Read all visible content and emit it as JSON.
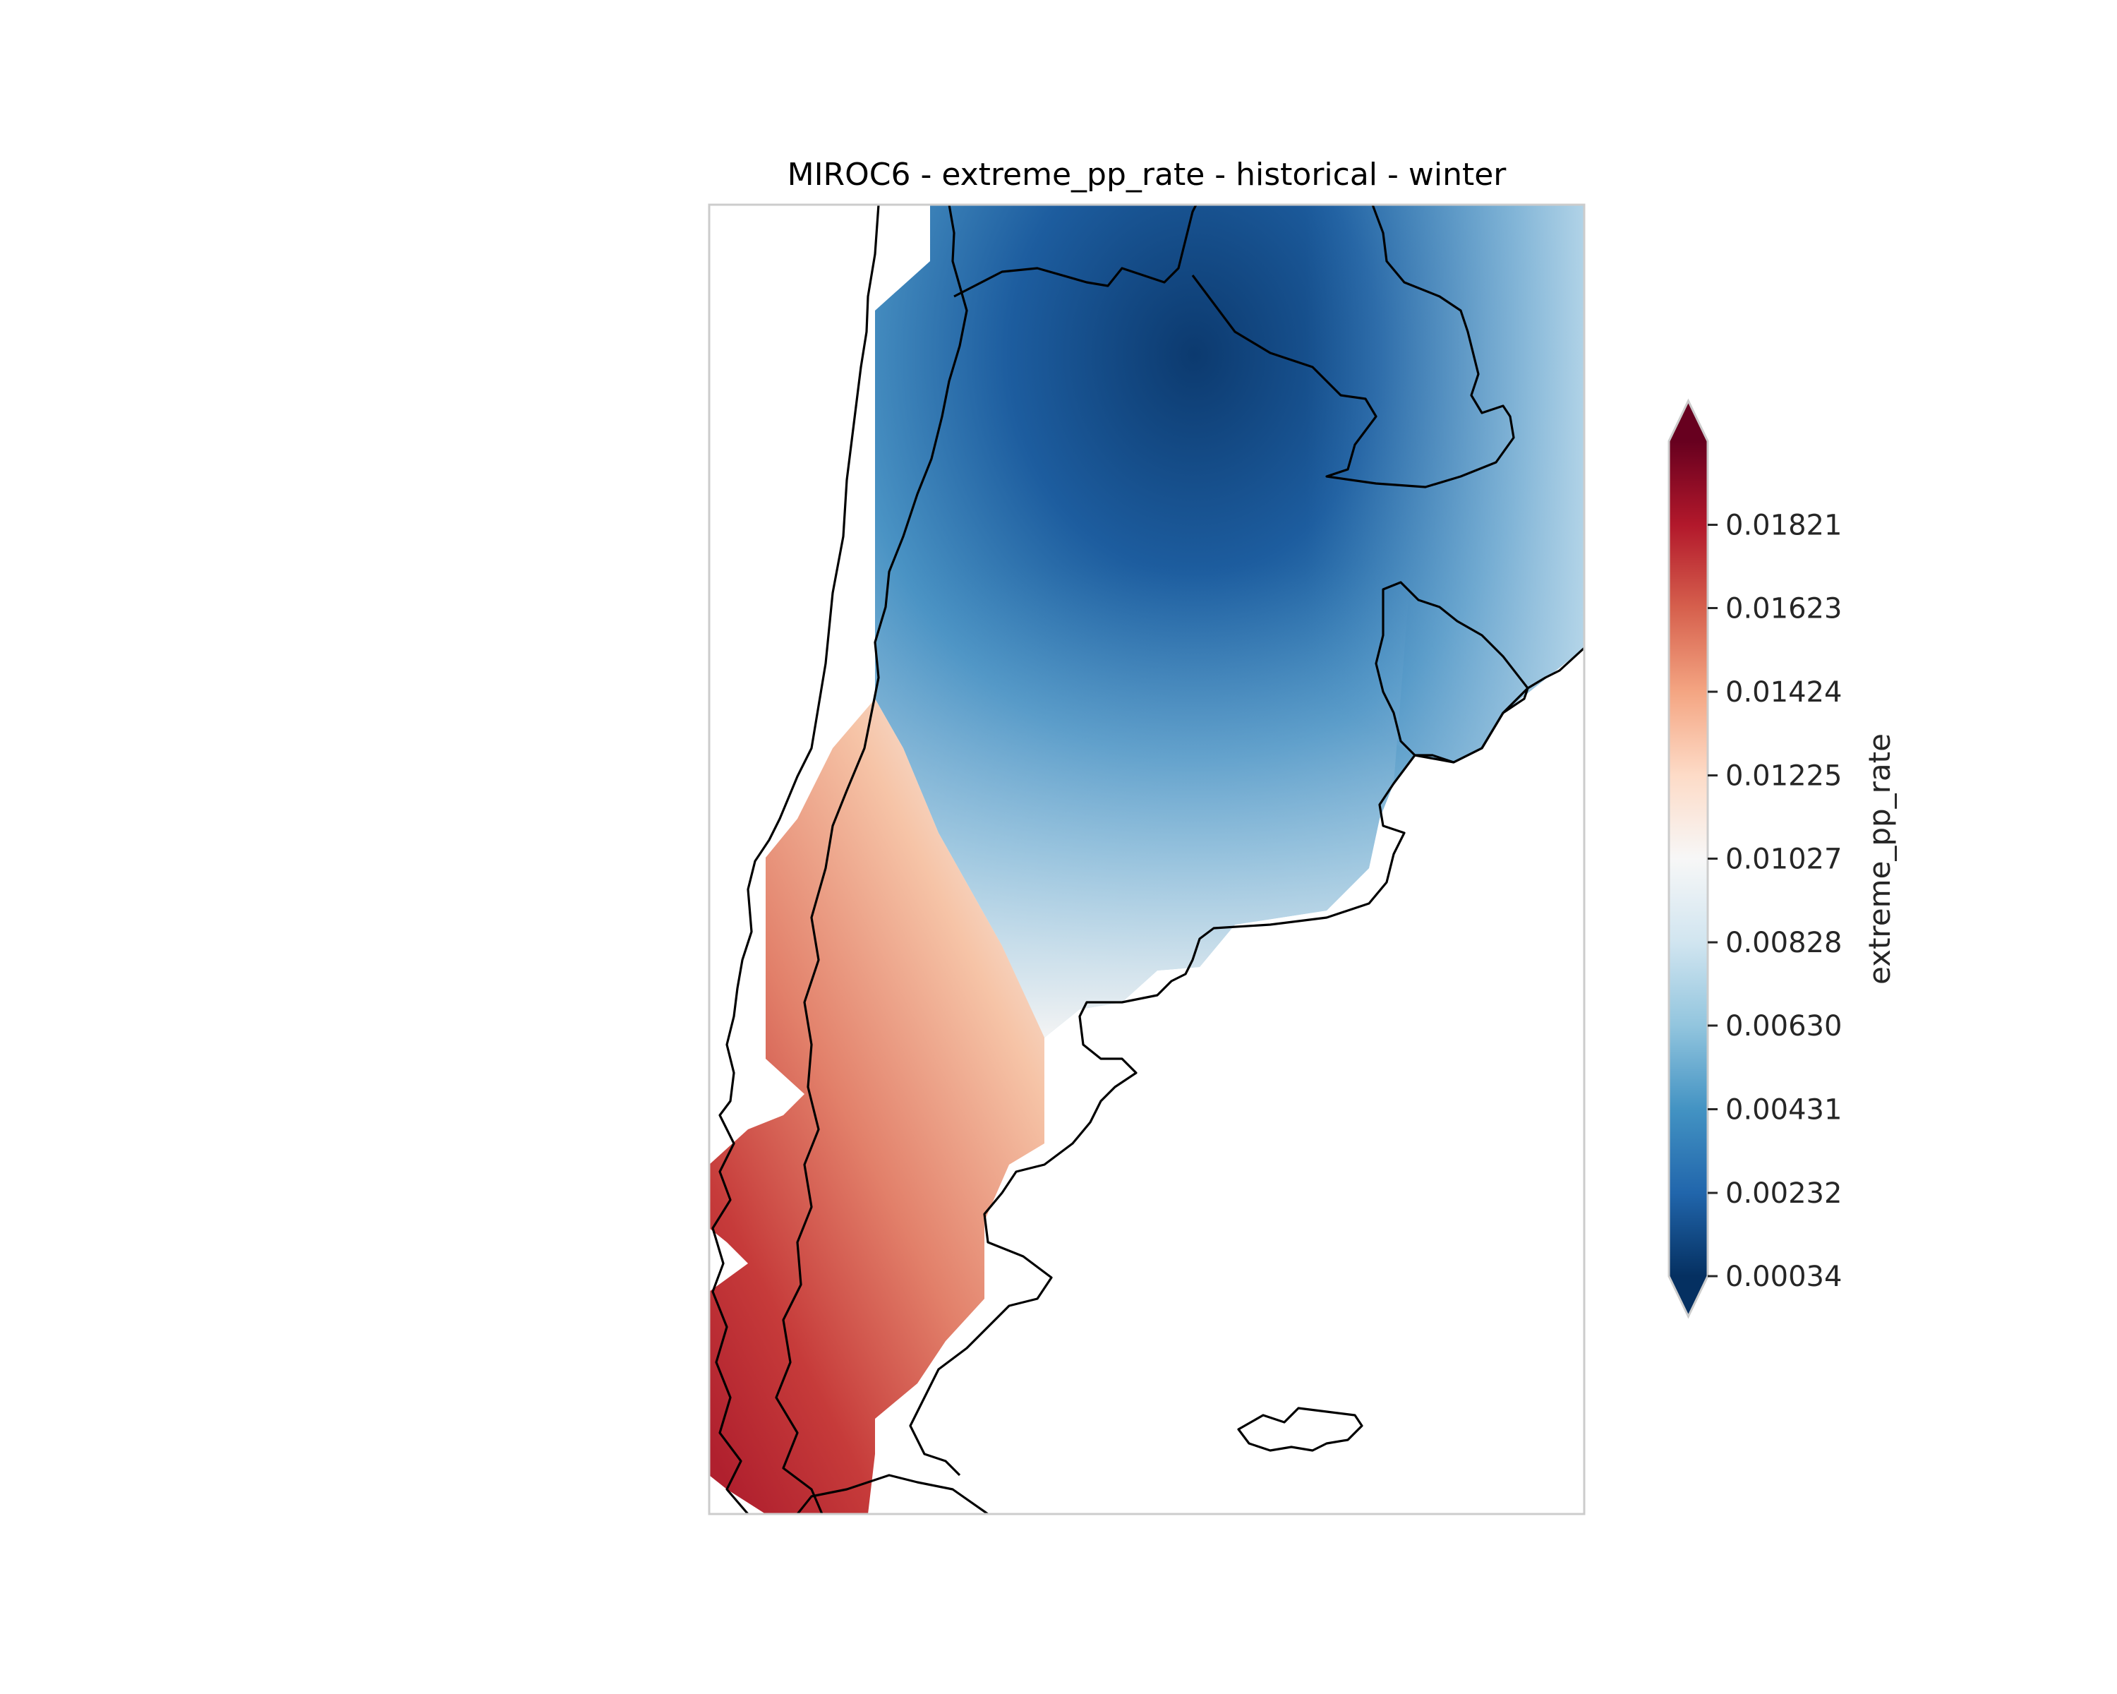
{
  "title": "MIROC6 - extreme_pp_rate - historical - winter",
  "colorbar": {
    "label": "extreme_pp_rate",
    "colormap": "RdBu_r",
    "extend": "both",
    "ticks": [
      "0.00034",
      "0.00232",
      "0.00431",
      "0.00630",
      "0.00828",
      "0.01027",
      "0.01225",
      "0.01424",
      "0.01623",
      "0.01821"
    ],
    "vmin": 0.00034,
    "vmax": 0.0202,
    "colors": [
      "#053061",
      "#2166ac",
      "#4393c3",
      "#92c5de",
      "#d1e5f0",
      "#f7f7f7",
      "#fddbc7",
      "#f4a582",
      "#d6604d",
      "#b2182b",
      "#67001f"
    ]
  },
  "map_data": {
    "region": "southern South America (Argentina, Chile, Uruguay, Paraguay)",
    "field_summary": [
      {
        "area": "northern Argentina / Paraguay",
        "value": 0.001
      },
      {
        "area": "northeast Argentina / Uruguay",
        "value": 0.007
      },
      {
        "area": "central Argentina",
        "value": 0.009
      },
      {
        "area": "northern Patagonia Andes",
        "value": 0.015
      },
      {
        "area": "southern Chile coast",
        "value": 0.0185
      }
    ]
  }
}
